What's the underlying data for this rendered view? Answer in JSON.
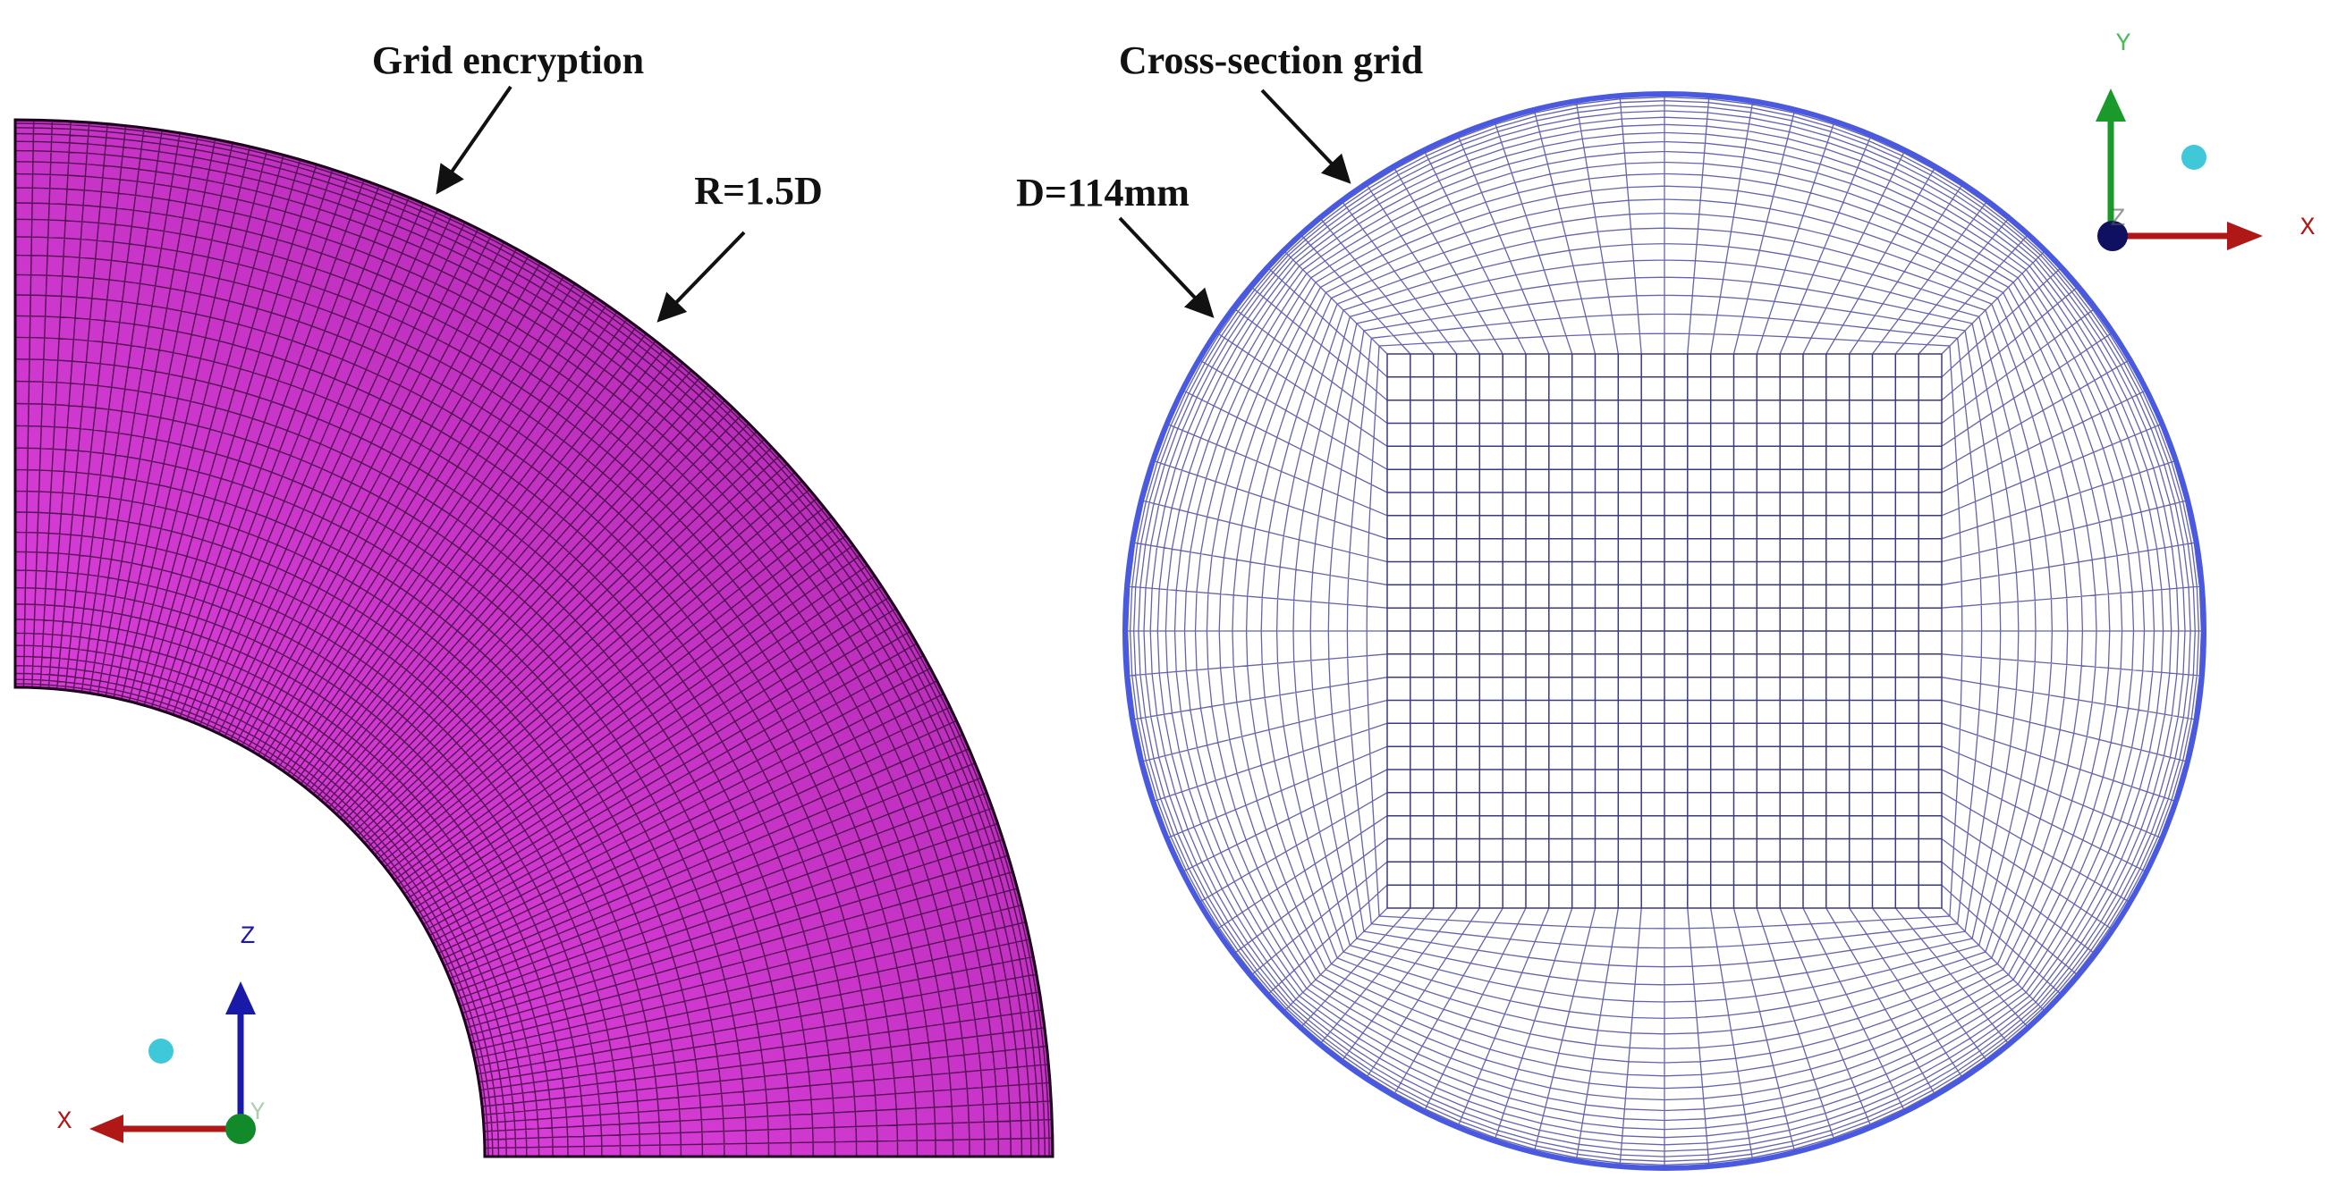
{
  "annotations": {
    "grid_encryption": "Grid encryption",
    "bend_radius": "R=1.5D",
    "cross_section": "Cross-section grid",
    "diameter": "D=114mm"
  },
  "left_axes": {
    "z": "Z",
    "x": "X",
    "y": "Y"
  },
  "right_axes": {
    "y": "Y",
    "x": "X",
    "z": "Z"
  }
}
